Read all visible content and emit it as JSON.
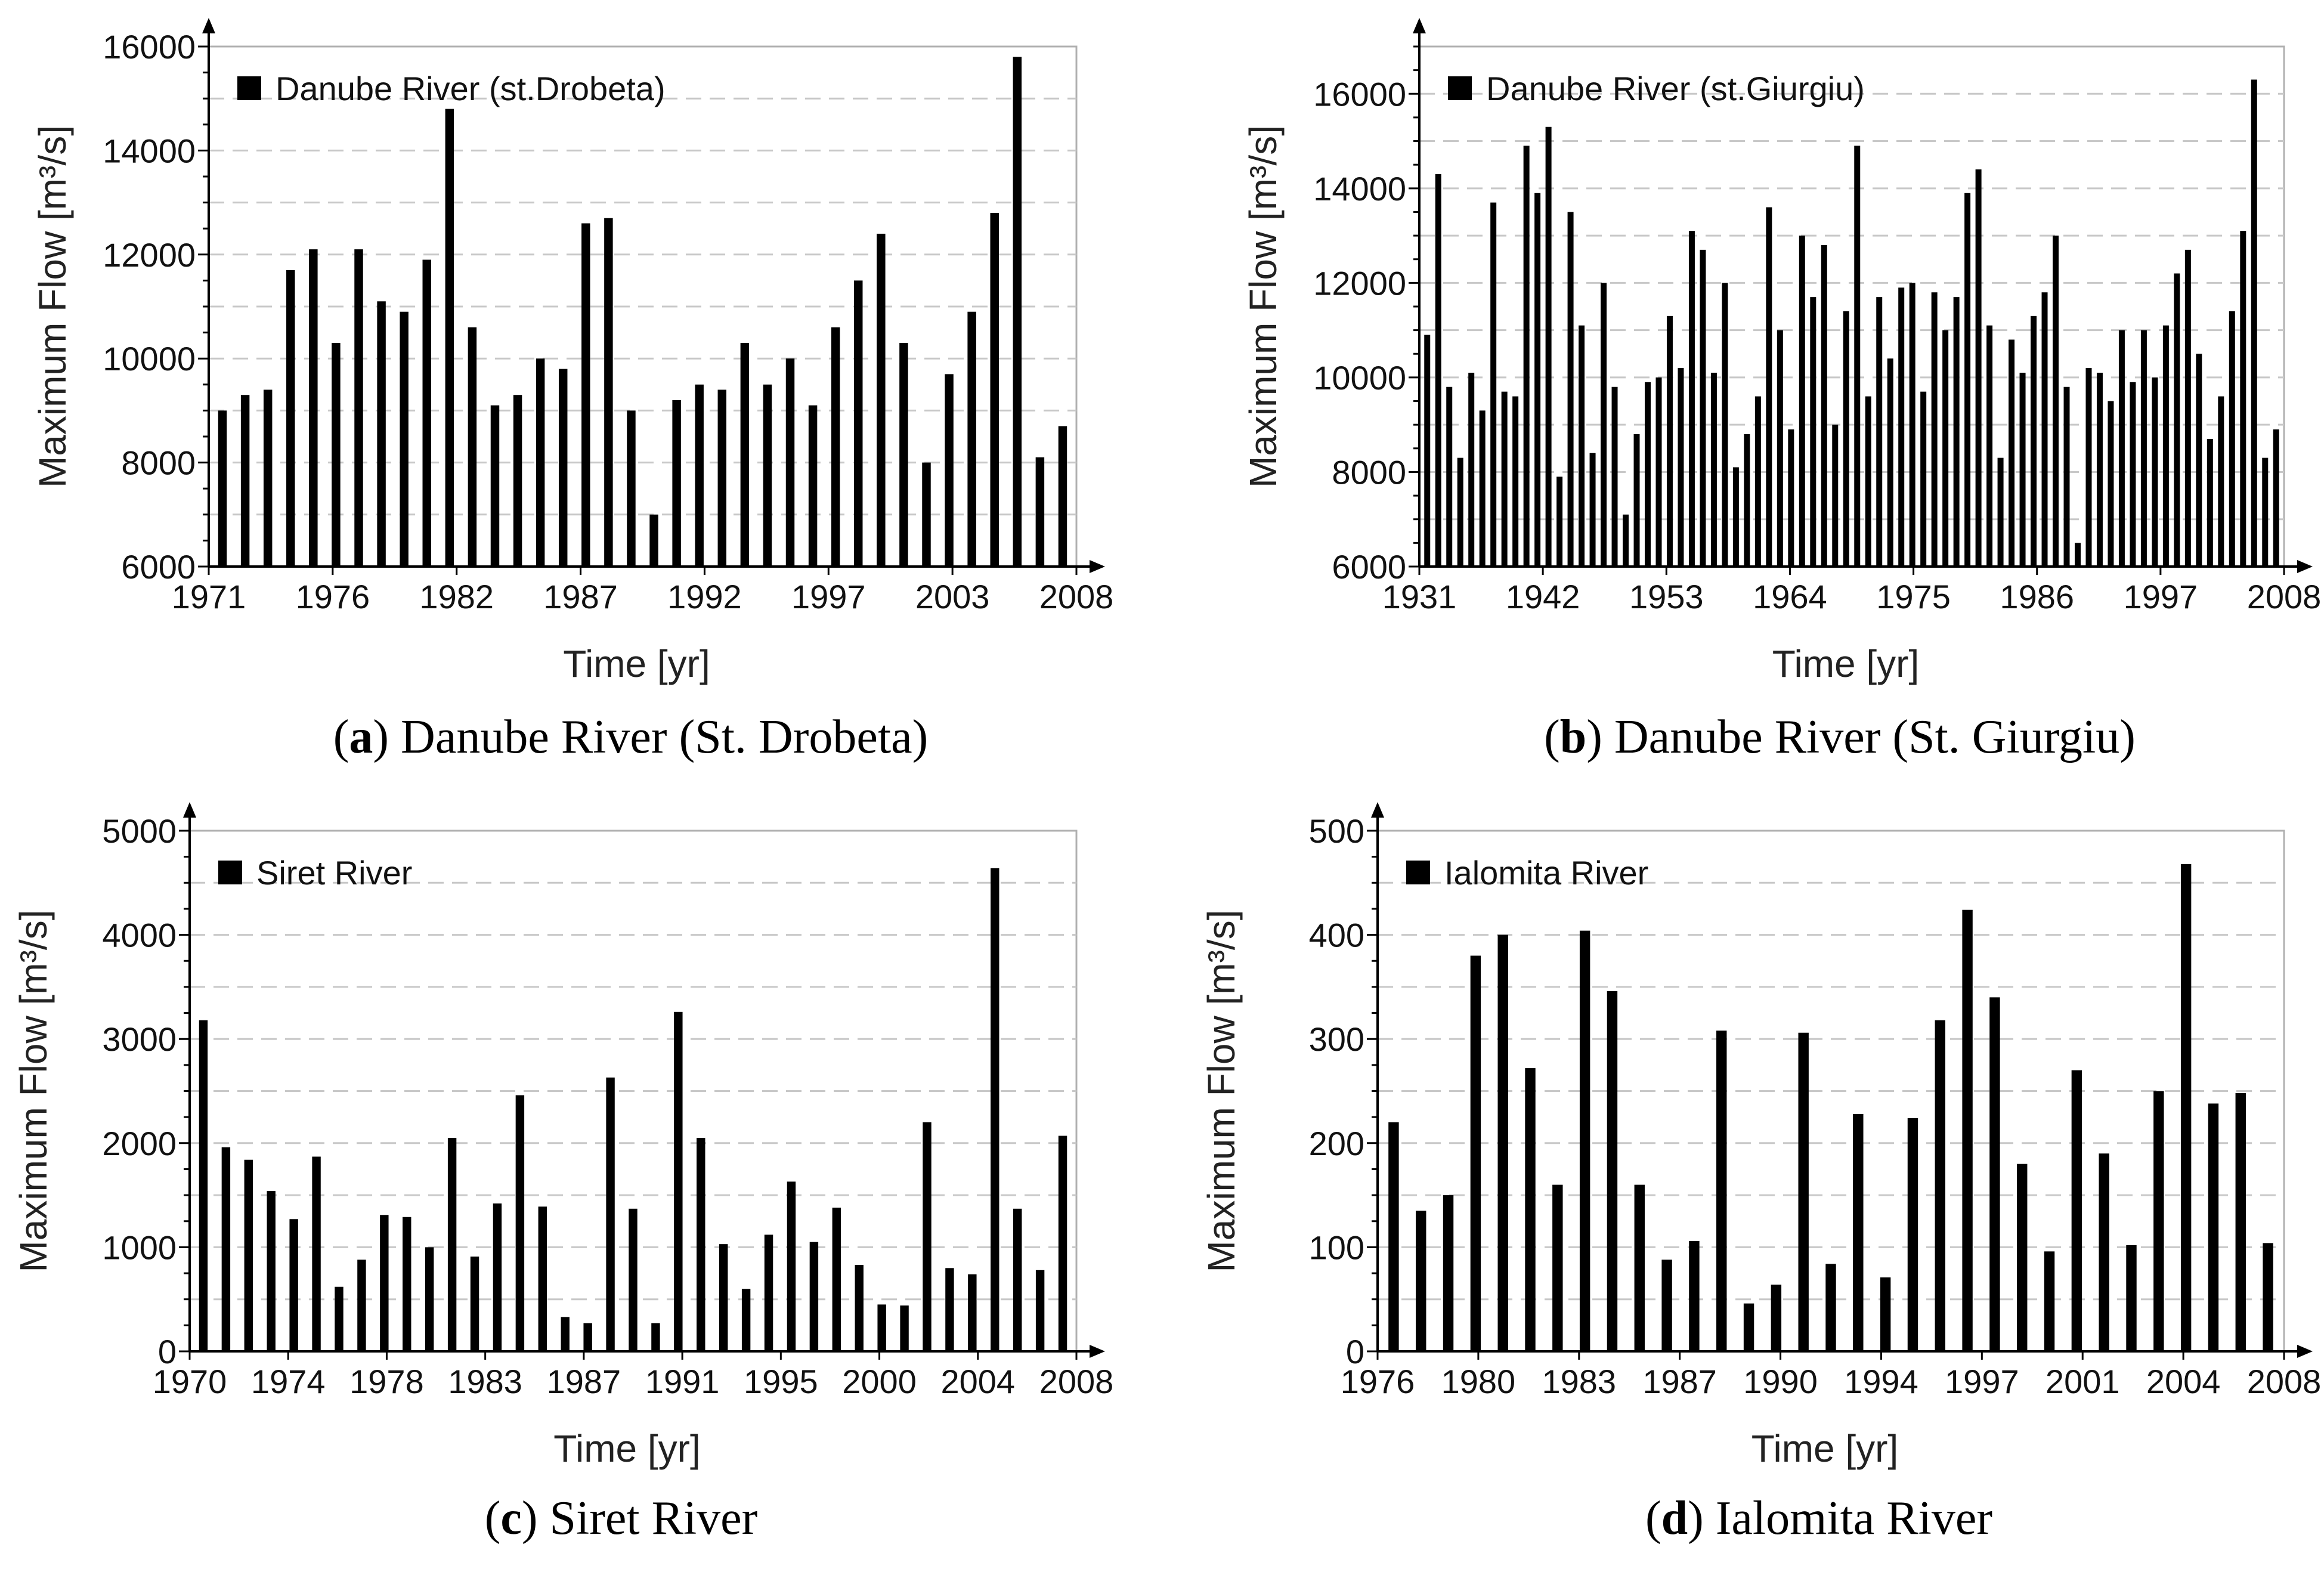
{
  "chart_data": [
    {
      "type": "bar",
      "title": "Danube River (st.Drobeta)",
      "legend": "Danube River (st.Drobeta)",
      "legend_position": "top-left",
      "caption": {
        "letter": "a",
        "text": "Danube River (St. Drobeta)"
      },
      "xlabel": "Time [yr]",
      "ylabel": "Maximum Flow [m³/s]",
      "ylim": [
        6000,
        16000
      ],
      "yticks": [
        6000,
        8000,
        10000,
        12000,
        14000,
        16000
      ],
      "xtick_labels": [
        "1971",
        "1976",
        "1982",
        "1987",
        "1992",
        "1997",
        "2003",
        "2008"
      ],
      "values": [
        9000,
        9300,
        9400,
        11700,
        12100,
        10300,
        12100,
        11100,
        10900,
        11900,
        14800,
        10600,
        9100,
        9300,
        10000,
        9800,
        12600,
        12700,
        9000,
        7000,
        9200,
        9500,
        9400,
        10300,
        9500,
        10000,
        9100,
        10600,
        11500,
        12400,
        10300,
        8000,
        9700,
        10900,
        12800,
        15800,
        8100,
        8700
      ]
    },
    {
      "type": "bar",
      "title": "Danube River (st.Giurgiu)",
      "legend": "Danube River (st.Giurgiu)",
      "legend_position": "top-left",
      "caption": {
        "letter": "b",
        "text": "Danube River (St. Giurgiu)"
      },
      "xlabel": "Time [yr]",
      "ylabel": "Maximum Flow [m³/s]",
      "ylim": [
        6000,
        17000
      ],
      "yticks": [
        6000,
        8000,
        10000,
        12000,
        14000,
        16000
      ],
      "xtick_labels": [
        "1931",
        "1942",
        "1953",
        "1964",
        "1975",
        "1986",
        "1997",
        "2008"
      ],
      "values": [
        10900,
        14300,
        9800,
        8300,
        10100,
        9300,
        13700,
        9700,
        9600,
        14900,
        13900,
        15300,
        7900,
        13500,
        11100,
        8400,
        12000,
        9800,
        7100,
        8800,
        9900,
        10000,
        11300,
        10200,
        13100,
        12700,
        10100,
        12000,
        8100,
        8800,
        9600,
        13600,
        11000,
        8900,
        13000,
        11700,
        12800,
        9000,
        11400,
        14900,
        9600,
        11700,
        10400,
        11900,
        12000,
        9700,
        11800,
        11000,
        11700,
        13900,
        14400,
        11100,
        8300,
        10800,
        10100,
        11300,
        11800,
        13000,
        9800,
        6500,
        10200,
        10100,
        9500,
        11000,
        9900,
        11000,
        10000,
        11100,
        12200,
        12700,
        10500,
        8700,
        9600,
        11400,
        13100,
        16300,
        8300,
        8900
      ]
    },
    {
      "type": "bar",
      "title": "Siret River",
      "legend": "Siret River",
      "legend_position": "top-left",
      "caption": {
        "letter": "c",
        "text": "Siret River"
      },
      "xlabel": "Time [yr]",
      "ylabel": "Maximum Flow [m³/s]",
      "ylim": [
        0,
        5000
      ],
      "yticks": [
        0,
        1000,
        2000,
        3000,
        4000,
        5000
      ],
      "xtick_labels": [
        "1970",
        "1974",
        "1978",
        "1983",
        "1987",
        "1991",
        "1995",
        "2000",
        "2004",
        "2008"
      ],
      "values": [
        3180,
        1960,
        1840,
        1540,
        1270,
        1870,
        620,
        880,
        1310,
        1290,
        1000,
        2050,
        910,
        1420,
        2460,
        1390,
        330,
        270,
        2630,
        1370,
        270,
        3260,
        2050,
        1030,
        600,
        1120,
        1630,
        1050,
        1380,
        830,
        450,
        440,
        2200,
        800,
        740,
        4640,
        1370,
        780,
        2070
      ]
    },
    {
      "type": "bar",
      "title": "Ialomita River",
      "legend": "Ialomita River",
      "legend_position": "top-left",
      "caption": {
        "letter": "d",
        "text": "Ialomita River"
      },
      "xlabel": "Time [yr]",
      "ylabel": "Maximum Flow [m³/s]",
      "ylim": [
        0,
        500
      ],
      "yticks": [
        0,
        100,
        200,
        300,
        400,
        500
      ],
      "xtick_labels": [
        "1976",
        "1980",
        "1983",
        "1987",
        "1990",
        "1994",
        "1997",
        "2001",
        "2004",
        "2008"
      ],
      "values": [
        220,
        135,
        150,
        380,
        400,
        272,
        160,
        404,
        346,
        160,
        88,
        106,
        308,
        46,
        64,
        306,
        84,
        228,
        71,
        224,
        318,
        424,
        340,
        180,
        96,
        270,
        190,
        102,
        250,
        468,
        238,
        248,
        104
      ]
    }
  ]
}
